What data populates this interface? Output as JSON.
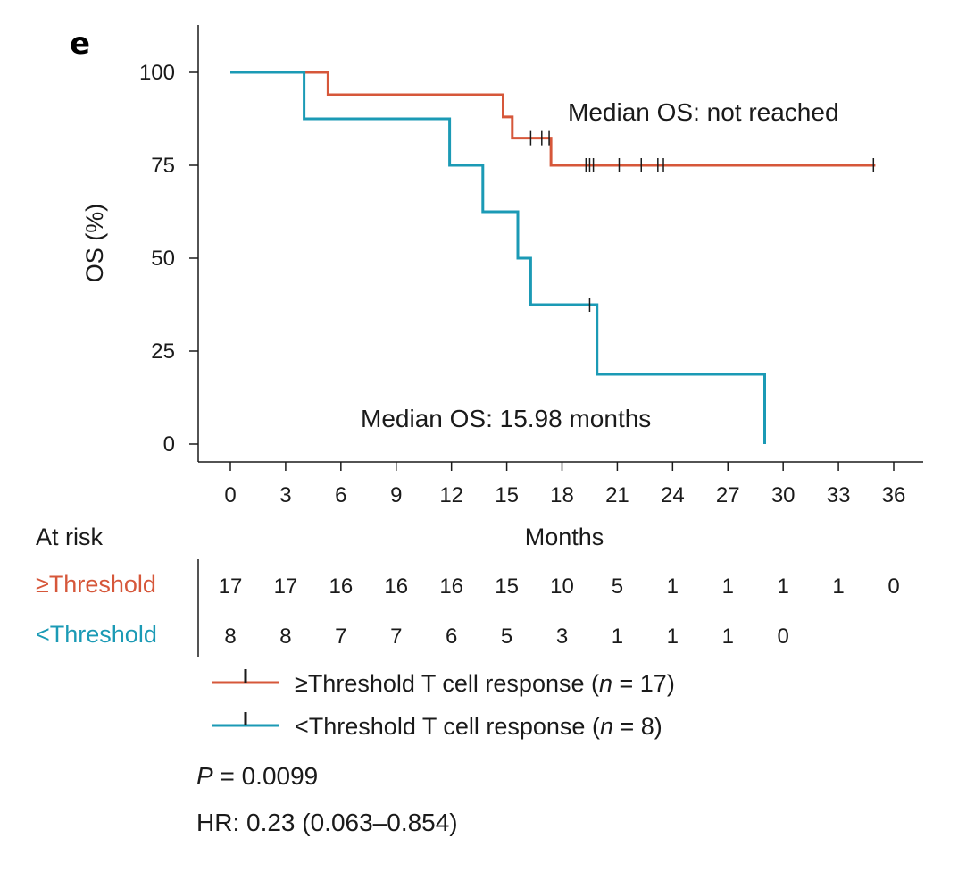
{
  "chart_data": {
    "type": "line",
    "subtype": "kaplan-meier",
    "panel_label": "e",
    "title": "",
    "xlabel": "Months",
    "ylabel": "OS (%)",
    "xlim": [
      -1.5,
      37.5
    ],
    "ylim": [
      -5,
      113
    ],
    "x_ticks": [
      0,
      3,
      6,
      9,
      12,
      15,
      18,
      21,
      24,
      27,
      30,
      33,
      36
    ],
    "y_ticks": [
      0,
      25,
      50,
      75,
      100
    ],
    "grid": false,
    "colors": {
      "above": "#d6573a",
      "below": "#1b9ab5",
      "censor": "#1a1a1a",
      "axis": "#1a1a1a"
    },
    "series": [
      {
        "name": "≥Threshold T cell response (n = 17)",
        "color": "#d6573a",
        "steps": [
          [
            0,
            100
          ],
          [
            5.3,
            100
          ],
          [
            5.3,
            94
          ],
          [
            14.8,
            94
          ],
          [
            14.8,
            88
          ],
          [
            15.3,
            88
          ],
          [
            15.3,
            82.3
          ],
          [
            17.4,
            82.3
          ],
          [
            17.4,
            75
          ],
          [
            35,
            75
          ]
        ],
        "censored": [
          [
            16.3,
            82.3
          ],
          [
            16.9,
            82.3
          ],
          [
            17.3,
            82.3
          ],
          [
            19.3,
            75
          ],
          [
            19.5,
            75
          ],
          [
            19.7,
            75
          ],
          [
            21.1,
            75
          ],
          [
            22.3,
            75
          ],
          [
            23.2,
            75
          ],
          [
            23.5,
            75
          ],
          [
            34.9,
            75
          ]
        ]
      },
      {
        "name": "<Threshold T cell response (n = 8)",
        "color": "#1b9ab5",
        "steps": [
          [
            0,
            100
          ],
          [
            4,
            100
          ],
          [
            4,
            87.5
          ],
          [
            11.9,
            87.5
          ],
          [
            11.9,
            75
          ],
          [
            13.7,
            75
          ],
          [
            13.7,
            62.5
          ],
          [
            15.6,
            62.5
          ],
          [
            15.6,
            50
          ],
          [
            16.3,
            50
          ],
          [
            16.3,
            37.5
          ],
          [
            19.9,
            37.5
          ],
          [
            19.9,
            18.75
          ],
          [
            29,
            18.75
          ],
          [
            29,
            0
          ]
        ],
        "censored": [
          [
            19.5,
            37.5
          ]
        ]
      }
    ],
    "annotations": [
      {
        "text": "Median OS: not reached"
      },
      {
        "text": "Median OS: 15.98 months"
      }
    ],
    "at_risk": {
      "header": "At risk",
      "rows": [
        {
          "label": "≥Threshold",
          "color": "#d6573a",
          "counts": [
            "17",
            "17",
            "16",
            "16",
            "16",
            "15",
            "10",
            "5",
            "1",
            "1",
            "1",
            "1",
            "0"
          ]
        },
        {
          "label": "<Threshold",
          "color": "#1b9ab5",
          "counts": [
            "8",
            "8",
            "7",
            "7",
            "6",
            "5",
            "3",
            "1",
            "1",
            "1",
            "0"
          ]
        }
      ]
    },
    "legend": [
      {
        "prefix": "≥Threshold T cell response (",
        "n_italic": "n",
        "suffix": " = 17)",
        "color": "#d6573a"
      },
      {
        "prefix": "<Threshold T cell response (",
        "n_italic": "n",
        "suffix": " = 8)",
        "color": "#1b9ab5"
      }
    ],
    "stats": {
      "p_label": "P",
      "p_rest": " = 0.0099",
      "hr": "HR: 0.23 (0.063–0.854)"
    }
  }
}
